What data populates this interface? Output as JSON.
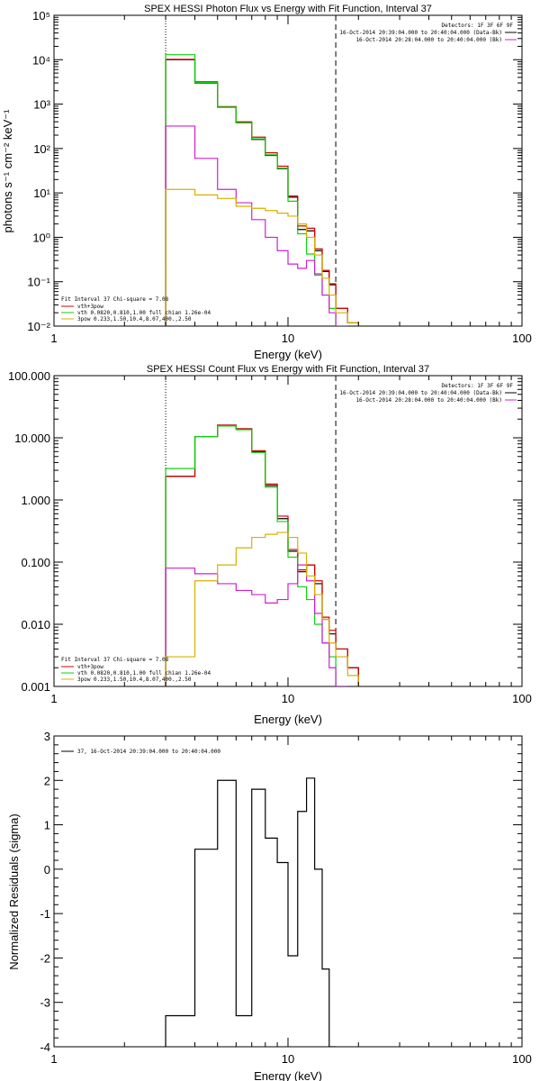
{
  "colors": {
    "black": "#000000",
    "red": "#d40000",
    "green": "#10d010",
    "magenta": "#d020d0",
    "yellow": "#d8b000",
    "background": "#ffffff"
  },
  "chart_data": [
    {
      "type": "line",
      "step": true,
      "title": "SPEX HESSI Photon Flux vs Energy with Fit Function, Interval 37",
      "xlabel": "Energy (keV)",
      "ylabel": "photons s⁻¹ cm⁻² keV⁻¹",
      "xscale": "log",
      "yscale": "log",
      "xlim": [
        1,
        100
      ],
      "ylim": [
        0.01,
        100000
      ],
      "xticks": [
        "1",
        "10",
        "100"
      ],
      "yticks": [
        "10⁻²",
        "10⁻¹",
        "10⁰",
        "10¹",
        "10²",
        "10³",
        "10⁴",
        "10⁵"
      ],
      "vlines": [
        {
          "x": 3.0,
          "style": "dotted"
        },
        {
          "x": 16.0,
          "style": "dashed"
        }
      ],
      "header_lines": [
        "Detectors: 1F 3F 6F 9F",
        "16-Oct-2014 20:39:04.000 to 20:40:04.000 (Data-Bk)",
        "16-Oct-2014 20:28:04.000 to 20:40:04.000 (Bk)"
      ],
      "legend_lines": [
        "Fit Interval 37   Chi-square = 7.08",
        "vth+3pow",
        "vth 0.0820,0.810,1.00  full chian 1.26e-04",
        "3pow 0.233,1.50,10.4,8.07,400.,2.50"
      ],
      "legend_position": "bottom-left",
      "bin_edges": [
        3.0,
        4.0,
        5.0,
        6.0,
        7.0,
        8.0,
        9.0,
        10.0,
        11.0,
        12.0,
        13.0,
        14.0,
        15.0,
        16.0,
        18.0,
        20.0
      ],
      "series": [
        {
          "color": "black",
          "values": [
            10000,
            3000,
            850,
            380,
            160,
            70,
            35,
            8,
            1.5,
            1.4,
            0.5,
            0.17,
            0.085,
            0.025,
            0.012
          ]
        },
        {
          "color": "red",
          "values": [
            10200,
            3200,
            880,
            400,
            180,
            80,
            40,
            8.5,
            1.8,
            1.6,
            0.55,
            0.18,
            0.09,
            0.025,
            0.012
          ]
        },
        {
          "color": "green",
          "values": [
            13000,
            3100,
            860,
            380,
            165,
            72,
            36,
            6.5,
            1.2,
            0.42,
            0.14,
            0.05,
            0.025,
            0.01,
            0.004
          ]
        },
        {
          "color": "magenta",
          "values": [
            320,
            60,
            12,
            6,
            2.5,
            1.0,
            0.5,
            0.25,
            0.2,
            0.3,
            0.15,
            0.05,
            0.02,
            0.01,
            0.004
          ]
        },
        {
          "color": "yellow",
          "values": [
            12,
            9,
            7.5,
            5,
            4.5,
            4.0,
            3.5,
            3.0,
            2.0,
            1.0,
            0.4,
            0.12,
            0.05,
            0.02,
            0.012
          ]
        }
      ]
    },
    {
      "type": "line",
      "step": true,
      "title": "SPEX HESSI Count Flux vs Energy with Fit Function, Interval 37",
      "xlabel": "Energy (keV)",
      "ylabel": "",
      "xscale": "log",
      "yscale": "log",
      "xlim": [
        1,
        100
      ],
      "ylim": [
        0.001,
        100
      ],
      "xticks": [
        "1",
        "10",
        "100"
      ],
      "yticks": [
        "0.001",
        "0.010",
        "0.100",
        "1.000",
        "10.000",
        "100.000"
      ],
      "vlines": [
        {
          "x": 3.0,
          "style": "dotted"
        },
        {
          "x": 16.0,
          "style": "dashed"
        }
      ],
      "header_lines": [
        "Detectors: 1F 3F 6F 9F",
        "16-Oct-2014 20:39:04.000 to 20:40:04.000 (Data-Bk)",
        "16-Oct-2014 20:28:04.000 to 20:40:04.000 (Bk)"
      ],
      "legend_lines": [
        "Fit Interval 37   Chi-square = 7.08",
        "vth+3pow",
        "vth 0.0820,0.810,1.00  full chian 1.26e-04",
        "3pow 0.233,1.50,10.4,8.07,400.,2.50"
      ],
      "legend_position": "bottom-left",
      "bin_edges": [
        3.0,
        4.0,
        5.0,
        6.0,
        7.0,
        8.0,
        9.0,
        10.0,
        11.0,
        12.0,
        13.0,
        14.0,
        15.0,
        16.0,
        18.0,
        20.0
      ],
      "series": [
        {
          "color": "black",
          "values": [
            2.4,
            10.5,
            16.0,
            14.0,
            6.0,
            1.7,
            0.5,
            0.15,
            0.07,
            0.09,
            0.045,
            0.012,
            0.007,
            0.004,
            0.002
          ]
        },
        {
          "color": "red",
          "values": [
            2.4,
            10.5,
            16.0,
            14.0,
            6.2,
            1.8,
            0.55,
            0.16,
            0.075,
            0.09,
            0.05,
            0.013,
            0.008,
            0.004,
            0.002
          ]
        },
        {
          "color": "green",
          "values": [
            3.2,
            10.5,
            15.5,
            13.5,
            5.8,
            1.6,
            0.45,
            0.12,
            0.04,
            0.025,
            0.01,
            0.005,
            0.003,
            0.001,
            0.0005
          ]
        },
        {
          "color": "magenta",
          "values": [
            0.08,
            0.065,
            0.045,
            0.035,
            0.03,
            0.022,
            0.025,
            0.045,
            0.09,
            0.05,
            0.015,
            0.005,
            0.002,
            0.001,
            0.0005
          ]
        },
        {
          "color": "yellow",
          "values": [
            0.003,
            0.05,
            0.09,
            0.17,
            0.25,
            0.28,
            0.3,
            0.25,
            0.14,
            0.06,
            0.03,
            0.012,
            0.005,
            0.003,
            0.0015
          ]
        }
      ]
    },
    {
      "type": "line",
      "step": true,
      "title": "",
      "xlabel": "Energy (keV)",
      "ylabel": "Normalized Residuals (sigma)",
      "xscale": "log",
      "yscale": "linear",
      "xlim": [
        1,
        100
      ],
      "ylim": [
        -4,
        3
      ],
      "xticks": [
        "1",
        "10",
        "100"
      ],
      "yticks": [
        "-4",
        "-3",
        "-2",
        "-1",
        "0",
        "1",
        "2",
        "3"
      ],
      "legend_lines": [
        "37, 16-Oct-2014 20:39:04.000 to 20:40:04.000"
      ],
      "legend_position": "top-left",
      "bin_edges": [
        3.0,
        4.0,
        5.0,
        6.0,
        7.0,
        8.0,
        9.0,
        10.0,
        11.0,
        12.0,
        13.0,
        14.0,
        15.0,
        16.0
      ],
      "series": [
        {
          "color": "black",
          "values": [
            -3.3,
            0.45,
            2.0,
            -3.3,
            1.8,
            0.7,
            0.15,
            -1.95,
            1.3,
            2.05,
            0.0,
            -2.25,
            -4.0
          ]
        }
      ]
    }
  ]
}
